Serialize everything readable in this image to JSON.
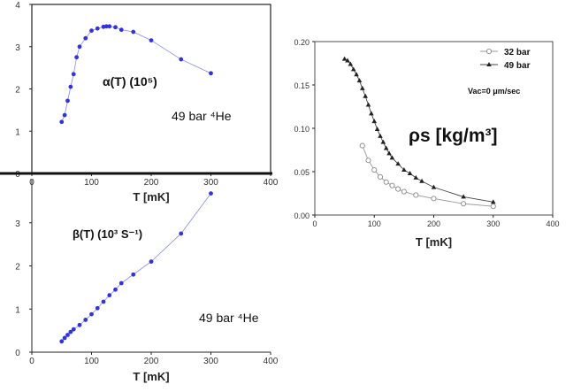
{
  "chart_data": [
    {
      "type": "line",
      "xlabel": "T [mK]",
      "ylabel": "",
      "xlim": [
        0,
        400
      ],
      "ylim": [
        0,
        4
      ],
      "xticks": [
        "0",
        "100",
        "200",
        "300",
        "400"
      ],
      "yticks": [
        "0",
        "1",
        "2",
        "3",
        "4"
      ],
      "series": [
        {
          "x": [
            50,
            55,
            60,
            65,
            70,
            75,
            80,
            90,
            100,
            110,
            120,
            125,
            130,
            140,
            150,
            170,
            200,
            250,
            300
          ],
          "values": [
            1.22,
            1.38,
            1.72,
            2.05,
            2.35,
            2.75,
            3.0,
            3.2,
            3.38,
            3.43,
            3.47,
            3.48,
            3.48,
            3.46,
            3.4,
            3.35,
            3.15,
            2.7,
            2.37
          ]
        }
      ],
      "annotations": {
        "quantity": "α(T)   (10⁵)",
        "sample": "49 bar ⁴He"
      },
      "color": "#3333dd"
    },
    {
      "type": "line",
      "xlabel": "T [mK]",
      "ylabel": "",
      "xlim": [
        0,
        400
      ],
      "ylim": [
        0,
        4
      ],
      "xticks": [
        "0",
        "100",
        "200",
        "300",
        "400"
      ],
      "yticks": [
        "0",
        "1",
        "2",
        "3"
      ],
      "series": [
        {
          "x": [
            50,
            55,
            60,
            65,
            70,
            80,
            90,
            100,
            110,
            120,
            130,
            140,
            150,
            170,
            200,
            250,
            300
          ],
          "values": [
            0.25,
            0.33,
            0.4,
            0.47,
            0.53,
            0.63,
            0.75,
            0.88,
            1.02,
            1.17,
            1.32,
            1.45,
            1.6,
            1.8,
            2.1,
            2.75,
            3.68
          ]
        }
      ],
      "annotations": {
        "quantity": "β(T)   (10³ S⁻¹)",
        "sample": "49 bar ⁴He"
      },
      "color": "#3333dd"
    },
    {
      "type": "line",
      "xlabel": "T [mK]",
      "ylabel": "",
      "title": "ρs [kg/m³]",
      "xlim": [
        0,
        400
      ],
      "ylim": [
        0,
        0.2
      ],
      "xticks": [
        "0",
        "100",
        "200",
        "300",
        "400"
      ],
      "yticks": [
        "0.00",
        "0.05",
        "0.10",
        "0.15",
        "0.20"
      ],
      "legend_position": "top-right",
      "series": [
        {
          "name": "32 bar",
          "marker": "circle-open",
          "x": [
            80,
            90,
            100,
            110,
            120,
            130,
            140,
            150,
            170,
            200,
            250,
            300
          ],
          "values": [
            0.08,
            0.063,
            0.052,
            0.044,
            0.038,
            0.034,
            0.03,
            0.027,
            0.023,
            0.019,
            0.013,
            0.01
          ]
        },
        {
          "name": "49 bar",
          "marker": "triangle-filled",
          "x": [
            50,
            55,
            60,
            65,
            70,
            75,
            80,
            85,
            90,
            95,
            100,
            105,
            110,
            115,
            120,
            125,
            130,
            140,
            150,
            160,
            170,
            180,
            200,
            250,
            300
          ],
          "values": [
            0.18,
            0.178,
            0.174,
            0.168,
            0.162,
            0.155,
            0.146,
            0.137,
            0.127,
            0.117,
            0.108,
            0.099,
            0.091,
            0.084,
            0.077,
            0.071,
            0.066,
            0.059,
            0.052,
            0.048,
            0.043,
            0.039,
            0.032,
            0.021,
            0.015
          ]
        }
      ],
      "annotations": {
        "velocity": "V₍ac₎=0 μm/sec"
      },
      "color": "#444444"
    }
  ],
  "labels": {
    "p1_quantity": "α(T)   (10⁵)",
    "p1_sample": "49 bar ⁴He",
    "p2_quantity": "β(T)   (10³ S⁻¹)",
    "p2_sample": "49 bar ⁴He",
    "p3_title": "ρs [kg/m³]",
    "p3_legend_a": "32 bar",
    "p3_legend_b": "49 bar",
    "p3_velocity": "Vac=0 μm/sec",
    "xlabel": "T [mK]"
  }
}
